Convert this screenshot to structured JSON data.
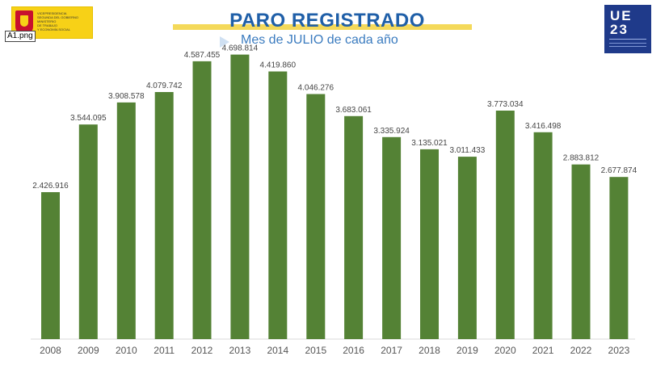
{
  "header": {
    "title": "PARO REGISTRADO",
    "subtitle": "Mes de JULIO de cada año",
    "file_label": "A1.png",
    "gov_logo_lines": [
      "VICEPRESIDENCIA",
      "SEGUNDA DEL GOBIERNO",
      "MINISTERIO",
      "DE TRABAJO",
      "Y ECONOMÍA SOCIAL"
    ],
    "ue_logo": {
      "line1": "UE",
      "line2": "23",
      "colors": [
        "#c8102e",
        "#f7d117",
        "#c8102e"
      ]
    }
  },
  "chart_data": {
    "type": "bar",
    "title": "PARO REGISTRADO",
    "subtitle": "Mes de JULIO de cada año",
    "categories": [
      "2008",
      "2009",
      "2010",
      "2011",
      "2012",
      "2013",
      "2014",
      "2015",
      "2016",
      "2017",
      "2018",
      "2019",
      "2020",
      "2021",
      "2022",
      "2023"
    ],
    "values": [
      2426916,
      3544095,
      3908578,
      4079742,
      4587455,
      4698814,
      4419860,
      4046276,
      3683061,
      3335924,
      3135021,
      3011433,
      3773034,
      3416498,
      2883812,
      2677874
    ],
    "labels": [
      "2.426.916",
      "3.544.095",
      "3.908.578",
      "4.079.742",
      "4.587.455",
      "4.698.814",
      "4.419.860",
      "4.046.276",
      "3.683.061",
      "3.335.924",
      "3.135.021",
      "3.011.433",
      "3.773.034",
      "3.416.498",
      "2.883.812",
      "2.677.874"
    ],
    "xlabel": "",
    "ylabel": "",
    "ylim": [
      0,
      5000000
    ],
    "grid": false,
    "bar_color": "#548235"
  }
}
